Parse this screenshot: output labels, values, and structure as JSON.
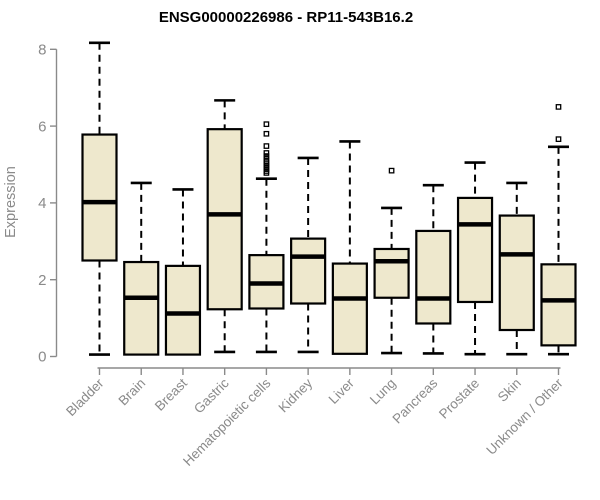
{
  "chart_data": {
    "type": "boxplot",
    "title": "ENSG00000226986 - RP11-543B16.2",
    "ylabel": "Expression",
    "xlabel": "",
    "ylim": [
      0,
      8
    ],
    "yticks": [
      0,
      2,
      4,
      6,
      8
    ],
    "grid": false,
    "legend": "none",
    "categories": [
      "Bladder",
      "Brain",
      "Breast",
      "Gastric",
      "Hematopoietic cells",
      "Kidney",
      "Liver",
      "Lung",
      "Pancreas",
      "Prostate",
      "Skin",
      "Unknown / Other"
    ],
    "boxes": [
      {
        "category": "Bladder",
        "whisker_low": 0.05,
        "q1": 2.5,
        "median": 4.02,
        "q3": 5.78,
        "whisker_high": 8.17,
        "outliers": []
      },
      {
        "category": "Brain",
        "whisker_low": null,
        "q1": 0.05,
        "median": 1.53,
        "q3": 2.46,
        "whisker_high": 4.52,
        "outliers": []
      },
      {
        "category": "Breast",
        "whisker_low": null,
        "q1": 0.05,
        "median": 1.12,
        "q3": 2.36,
        "whisker_high": 4.35,
        "outliers": []
      },
      {
        "category": "Gastric",
        "whisker_low": 0.12,
        "q1": 1.23,
        "median": 3.7,
        "q3": 5.92,
        "whisker_high": 6.67,
        "outliers": []
      },
      {
        "category": "Hematopoietic cells",
        "whisker_low": 0.12,
        "q1": 1.25,
        "median": 1.9,
        "q3": 2.64,
        "whisker_high": 4.63,
        "outliers": [
          4.78,
          4.83,
          4.88,
          4.93,
          4.98,
          5.03,
          5.08,
          5.15,
          5.22,
          5.3,
          5.48,
          5.8,
          6.05
        ]
      },
      {
        "category": "Kidney",
        "whisker_low": 0.12,
        "q1": 1.38,
        "median": 2.6,
        "q3": 3.07,
        "whisker_high": 5.17,
        "outliers": []
      },
      {
        "category": "Liver",
        "whisker_low": null,
        "q1": 0.07,
        "median": 1.51,
        "q3": 2.42,
        "whisker_high": 5.6,
        "outliers": []
      },
      {
        "category": "Lung",
        "whisker_low": 0.09,
        "q1": 1.53,
        "median": 2.48,
        "q3": 2.8,
        "whisker_high": 3.87,
        "outliers": [
          4.84
        ]
      },
      {
        "category": "Pancreas",
        "whisker_low": 0.08,
        "q1": 0.86,
        "median": 1.51,
        "q3": 3.27,
        "whisker_high": 4.46,
        "outliers": []
      },
      {
        "category": "Prostate",
        "whisker_low": 0.06,
        "q1": 1.42,
        "median": 3.44,
        "q3": 4.13,
        "whisker_high": 5.05,
        "outliers": []
      },
      {
        "category": "Skin",
        "whisker_low": 0.06,
        "q1": 0.69,
        "median": 2.66,
        "q3": 3.67,
        "whisker_high": 4.52,
        "outliers": []
      },
      {
        "category": "Unknown / Other",
        "whisker_low": 0.06,
        "q1": 0.29,
        "median": 1.46,
        "q3": 2.4,
        "whisker_high": 5.46,
        "outliers": [
          5.66,
          6.5
        ]
      }
    ],
    "colors": {
      "box_fill": "#EEE8CD",
      "box_stroke": "#000000",
      "median": "#000000",
      "whisker": "#000000",
      "axis": "#8a8a8a",
      "title": "#000000",
      "background": "#FFFFFF"
    }
  }
}
